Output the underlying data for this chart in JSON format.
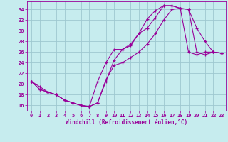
{
  "xlabel": "Windchill (Refroidissement éolien,°C)",
  "xlim": [
    -0.5,
    23.5
  ],
  "ylim": [
    15,
    35.5
  ],
  "yticks": [
    16,
    18,
    20,
    22,
    24,
    26,
    28,
    30,
    32,
    34
  ],
  "xticks": [
    0,
    1,
    2,
    3,
    4,
    5,
    6,
    7,
    8,
    9,
    10,
    11,
    12,
    13,
    14,
    15,
    16,
    17,
    18,
    19,
    20,
    21,
    22,
    23
  ],
  "background_color": "#c6ecee",
  "grid_color": "#9ec8d0",
  "line_color": "#990099",
  "curve1_x": [
    0,
    1,
    2,
    3,
    4,
    5,
    6,
    7,
    8,
    9,
    10,
    11,
    12,
    13,
    14,
    15,
    16,
    17,
    18,
    19,
    20,
    21,
    22,
    23
  ],
  "curve1_y": [
    20.5,
    19.5,
    18.5,
    18.0,
    17.0,
    16.5,
    16.0,
    15.8,
    16.5,
    20.5,
    24.5,
    26.5,
    27.2,
    29.5,
    32.2,
    33.8,
    34.7,
    34.7,
    34.2,
    34.0,
    30.5,
    28.0,
    26.0,
    25.8
  ],
  "curve2_x": [
    0,
    1,
    2,
    3,
    4,
    5,
    6,
    7,
    8,
    9,
    10,
    11,
    12,
    13,
    14,
    15,
    16,
    17,
    18,
    19,
    20,
    21,
    22,
    23
  ],
  "curve2_y": [
    20.5,
    19.0,
    18.5,
    18.0,
    17.0,
    16.5,
    16.0,
    15.8,
    20.5,
    24.0,
    26.5,
    26.5,
    27.5,
    29.5,
    30.5,
    32.5,
    34.7,
    34.7,
    34.2,
    26.0,
    25.5,
    26.0,
    26.0,
    25.8
  ],
  "curve3_x": [
    0,
    1,
    2,
    3,
    4,
    5,
    6,
    7,
    8,
    9,
    10,
    11,
    12,
    13,
    14,
    15,
    16,
    17,
    18,
    19,
    20,
    21,
    22,
    23
  ],
  "curve3_y": [
    20.5,
    19.0,
    18.5,
    18.0,
    17.0,
    16.5,
    16.0,
    15.8,
    16.5,
    20.8,
    23.5,
    24.0,
    25.0,
    26.0,
    27.5,
    29.5,
    32.0,
    34.0,
    34.2,
    34.0,
    26.0,
    25.5,
    26.0,
    25.8
  ]
}
